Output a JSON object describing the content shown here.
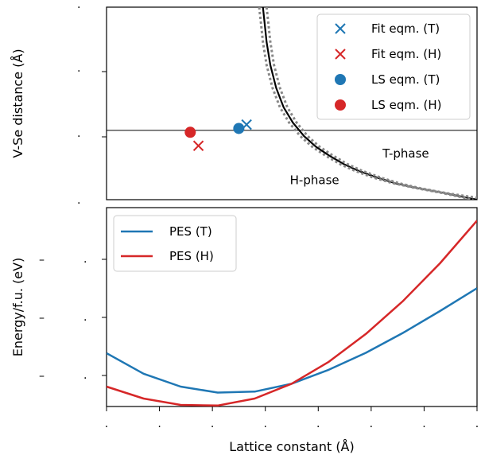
{
  "chart_data": [
    {
      "type": "line",
      "panel": "top",
      "ylabel": "V-Se distance (Å)",
      "xlabel": "",
      "xlim": [
        0,
        1
      ],
      "ylim": [
        0,
        1
      ],
      "ytick_labels": [
        ".",
        ".",
        ".",
        "."
      ],
      "reference_line_y": 0.36,
      "series": [
        {
          "name": "Fit eqm. (T)",
          "type": "scatter",
          "marker": "x",
          "color": "#1f77b4",
          "points": [
            [
              0.378,
              0.39
            ]
          ]
        },
        {
          "name": "Fit eqm. (H)",
          "type": "scatter",
          "marker": "x",
          "color": "#d62728",
          "points": [
            [
              0.248,
              0.28
            ]
          ]
        },
        {
          "name": "LS eqm. (T)",
          "type": "scatter",
          "marker": "circle",
          "color": "#1f77b4",
          "points": [
            [
              0.357,
              0.37
            ]
          ]
        },
        {
          "name": "LS eqm. (H)",
          "type": "scatter",
          "marker": "circle",
          "color": "#d62728",
          "points": [
            [
              0.226,
              0.35
            ]
          ]
        },
        {
          "type": "line",
          "style": "solid",
          "color": "#000000",
          "points": [
            [
              0.422,
              1.0
            ],
            [
              0.426,
              0.93
            ],
            [
              0.432,
              0.82
            ],
            [
              0.442,
              0.7
            ],
            [
              0.458,
              0.58
            ],
            [
              0.478,
              0.48
            ],
            [
              0.503,
              0.4
            ],
            [
              0.533,
              0.33
            ],
            [
              0.565,
              0.275
            ],
            [
              0.6,
              0.23
            ],
            [
              0.64,
              0.185
            ],
            [
              0.68,
              0.15
            ],
            [
              0.73,
              0.115
            ],
            [
              0.78,
              0.085
            ],
            [
              0.84,
              0.06
            ],
            [
              0.91,
              0.035
            ],
            [
              1.0,
              0.0
            ]
          ]
        },
        {
          "type": "line",
          "style": "dotted",
          "color": "#888888",
          "points": [
            [
              0.412,
              1.0
            ],
            [
              0.416,
              0.93
            ],
            [
              0.422,
              0.82
            ],
            [
              0.432,
              0.7
            ],
            [
              0.448,
              0.58
            ],
            [
              0.468,
              0.48
            ],
            [
              0.493,
              0.4
            ],
            [
              0.523,
              0.33
            ],
            [
              0.555,
              0.275
            ],
            [
              0.59,
              0.23
            ],
            [
              0.63,
              0.185
            ],
            [
              0.67,
              0.15
            ],
            [
              0.72,
              0.115
            ],
            [
              0.77,
              0.087
            ],
            [
              0.83,
              0.062
            ],
            [
              0.9,
              0.037
            ],
            [
              0.99,
              0.0
            ]
          ]
        },
        {
          "type": "line",
          "style": "dotted",
          "color": "#888888",
          "points": [
            [
              0.432,
              1.0
            ],
            [
              0.436,
              0.93
            ],
            [
              0.442,
              0.82
            ],
            [
              0.452,
              0.7
            ],
            [
              0.468,
              0.58
            ],
            [
              0.488,
              0.48
            ],
            [
              0.513,
              0.4
            ],
            [
              0.543,
              0.33
            ],
            [
              0.575,
              0.275
            ],
            [
              0.61,
              0.23
            ],
            [
              0.65,
              0.185
            ],
            [
              0.69,
              0.15
            ],
            [
              0.74,
              0.115
            ],
            [
              0.79,
              0.085
            ],
            [
              0.85,
              0.058
            ],
            [
              0.92,
              0.033
            ],
            [
              1.0,
              0.01
            ]
          ]
        }
      ],
      "annotations": [
        {
          "text": "T-phase",
          "x": 0.745,
          "y": 0.22
        },
        {
          "text": "H-phase",
          "x": 0.495,
          "y": 0.08
        }
      ],
      "legend": "top-right"
    },
    {
      "type": "line",
      "panel": "bottom",
      "ylabel": "Energy/f.u. (eV)",
      "xlabel": "Lattice constant (Å)",
      "xlim": [
        0,
        1
      ],
      "ylim": [
        0,
        1
      ],
      "xtick_labels": [
        ".",
        ".",
        ".",
        ".",
        ".",
        ".",
        ".",
        "."
      ],
      "ytick_labels": [
        ".",
        ".",
        "."
      ],
      "left_margin_labels": [
        "–",
        "–",
        "–"
      ],
      "series": [
        {
          "name": "PES (T)",
          "color": "#1f77b4",
          "points": [
            [
              0.0,
              0.268
            ],
            [
              0.1,
              0.165
            ],
            [
              0.2,
              0.1
            ],
            [
              0.3,
              0.07
            ],
            [
              0.4,
              0.075
            ],
            [
              0.5,
              0.115
            ],
            [
              0.6,
              0.185
            ],
            [
              0.7,
              0.27
            ],
            [
              0.8,
              0.37
            ],
            [
              0.9,
              0.48
            ],
            [
              1.0,
              0.595
            ]
          ]
        },
        {
          "name": "PES (H)",
          "color": "#d62728",
          "points": [
            [
              0.0,
              0.1
            ],
            [
              0.1,
              0.04
            ],
            [
              0.2,
              0.008
            ],
            [
              0.3,
              0.005
            ],
            [
              0.4,
              0.04
            ],
            [
              0.5,
              0.115
            ],
            [
              0.6,
              0.225
            ],
            [
              0.7,
              0.365
            ],
            [
              0.8,
              0.53
            ],
            [
              0.9,
              0.72
            ],
            [
              1.0,
              0.935
            ]
          ]
        }
      ],
      "legend": "top-left"
    }
  ]
}
